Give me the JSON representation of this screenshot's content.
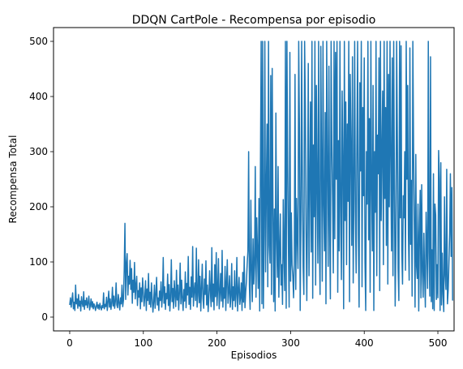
{
  "chart_data": {
    "type": "line",
    "title": "DDQN CartPole - Recompensa por episodio",
    "xlabel": "Episodios",
    "ylabel": "Recompensa Total",
    "xlim": [
      -22,
      522
    ],
    "ylim": [
      -25,
      525
    ],
    "xticks": [
      0,
      100,
      200,
      300,
      400,
      500
    ],
    "yticks": [
      0,
      100,
      200,
      300,
      400,
      500
    ],
    "xtick_labels": [
      "0",
      "100",
      "200",
      "300",
      "400",
      "500"
    ],
    "ytick_labels": [
      "0",
      "100",
      "200",
      "300",
      "400",
      "500"
    ],
    "grid": false,
    "series": [
      {
        "color": "#1f77b4",
        "x_start": 0,
        "x_step": 1,
        "values": [
          22,
          35,
          18,
          31,
          44,
          15,
          27,
          12,
          58,
          24,
          33,
          16,
          41,
          20,
          29,
          11,
          37,
          25,
          19,
          46,
          14,
          30,
          22,
          35,
          17,
          26,
          38,
          13,
          21,
          33,
          18,
          28,
          15,
          24,
          20,
          12,
          19,
          27,
          16,
          22,
          14,
          25,
          18,
          13,
          21,
          17,
          44,
          15,
          23,
          19,
          36,
          12,
          28,
          47,
          18,
          33,
          14,
          25,
          54,
          20,
          38,
          16,
          29,
          62,
          22,
          17,
          41,
          26,
          13,
          35,
          24,
          58,
          19,
          31,
          84,
          170,
          32,
          96,
          115,
          40,
          74,
          60,
          103,
          50,
          88,
          25,
          67,
          45,
          99,
          33,
          58,
          74,
          21,
          48,
          36,
          62,
          15,
          53,
          28,
          71,
          44,
          20,
          38,
          66,
          12,
          51,
          30,
          79,
          23,
          45,
          18,
          62,
          34,
          9,
          27,
          58,
          16,
          41,
          72,
          22,
          35,
          12,
          47,
          30,
          64,
          18,
          39,
          108,
          25,
          55,
          14,
          43,
          33,
          78,
          21,
          59,
          11,
          37,
          104,
          28,
          52,
          16,
          66,
          40,
          19,
          85,
          31,
          58,
          13,
          44,
          98,
          24,
          67,
          35,
          12,
          50,
          29,
          82,
          17,
          61,
          40,
          110,
          23,
          54,
          14,
          73,
          36,
          128,
          20,
          47,
          62,
          30,
          125,
          18,
          39,
          104,
          26,
          74,
          11,
          52,
          96,
          33,
          16,
          69,
          41,
          102,
          22,
          58,
          10,
          35,
          84,
          48,
          19,
          126,
          28,
          60,
          13,
          95,
          37,
          117,
          21,
          50,
          106,
          15,
          43,
          79,
          29,
          121,
          18,
          53,
          34,
          92,
          12,
          64,
          104,
          25,
          46,
          75,
          18,
          38,
          97,
          14,
          55,
          30,
          84,
          19,
          42,
          108,
          11,
          48,
          72,
          23,
          36,
          62,
          12,
          81,
          27,
          110,
          17,
          45,
          65,
          95,
          120,
          300,
          58,
          14,
          212,
          85,
          28,
          142,
          60,
          95,
          273,
          36,
          180,
          120,
          52,
          215,
          11,
          265,
          500,
          24,
          500,
          16,
          150,
          500,
          82,
          230,
          350,
          55,
          500,
          130,
          98,
          438,
          41,
          451,
          205,
          28,
          196,
          11,
          370,
          142,
          72,
          273,
          36,
          120,
          187,
          58,
          95,
          23,
          213,
          114,
          48,
          500,
          16,
          500,
          278,
          128,
          18,
          480,
          65,
          189,
          95,
          74,
          35,
          101,
          440,
          50,
          215,
          144,
          88,
          500,
          340,
          12,
          176,
          500,
          248,
          92,
          41,
          500,
          385,
          156,
          30,
          201,
          460,
          75,
          244,
          390,
          118,
          500,
          34,
          312,
          182,
          500,
          58,
          420,
          240,
          98,
          500,
          145,
          41,
          491,
          280,
          65,
          500,
          202,
          120,
          371,
          24,
          500,
          268,
          92,
          455,
          165,
          33,
          500,
          315,
          210,
          80,
          500,
          142,
          480,
          250,
          500,
          45,
          320,
          120,
          500,
          200,
          68,
          410,
          282,
          15,
          500,
          175,
          390,
          95,
          350,
          210,
          500,
          28,
          440,
          305,
          130,
          472,
          62,
          230,
          500,
          190,
          80,
          310,
          500,
          150,
          18,
          425,
          265,
          500,
          55,
          380,
          220,
          470,
          100,
          12,
          300,
          205,
          500,
          140,
          360,
          45,
          500,
          240,
          120,
          420,
          12,
          300,
          190,
          500,
          75,
          330,
          260,
          470,
          48,
          500,
          175,
          300,
          410,
          95,
          500,
          215,
          380,
          130,
          500,
          60,
          440,
          200,
          500,
          290,
          120,
          470,
          75,
          500,
          240,
          20,
          135,
          500,
          318,
          88,
          30,
          500,
          180,
          492,
          120,
          60,
          220,
          180,
          300,
          85,
          500,
          250,
          420,
          150,
          67,
          488,
          132,
          248,
          38,
          500,
          305,
          165,
          18,
          295,
          92,
          70,
          205,
          11,
          150,
          230,
          35,
          240,
          83,
          36,
          152,
          75,
          18,
          190,
          125,
          52,
          500,
          118,
          38,
          472,
          28,
          122,
          15,
          260,
          12,
          205,
          185,
          32,
          95,
          35,
          302,
          250,
          12,
          280,
          22,
          116,
          42,
          10,
          218,
          75,
          50,
          268,
          24,
          48,
          98,
          150,
          260,
          110,
          235,
          30
        ]
      }
    ]
  }
}
